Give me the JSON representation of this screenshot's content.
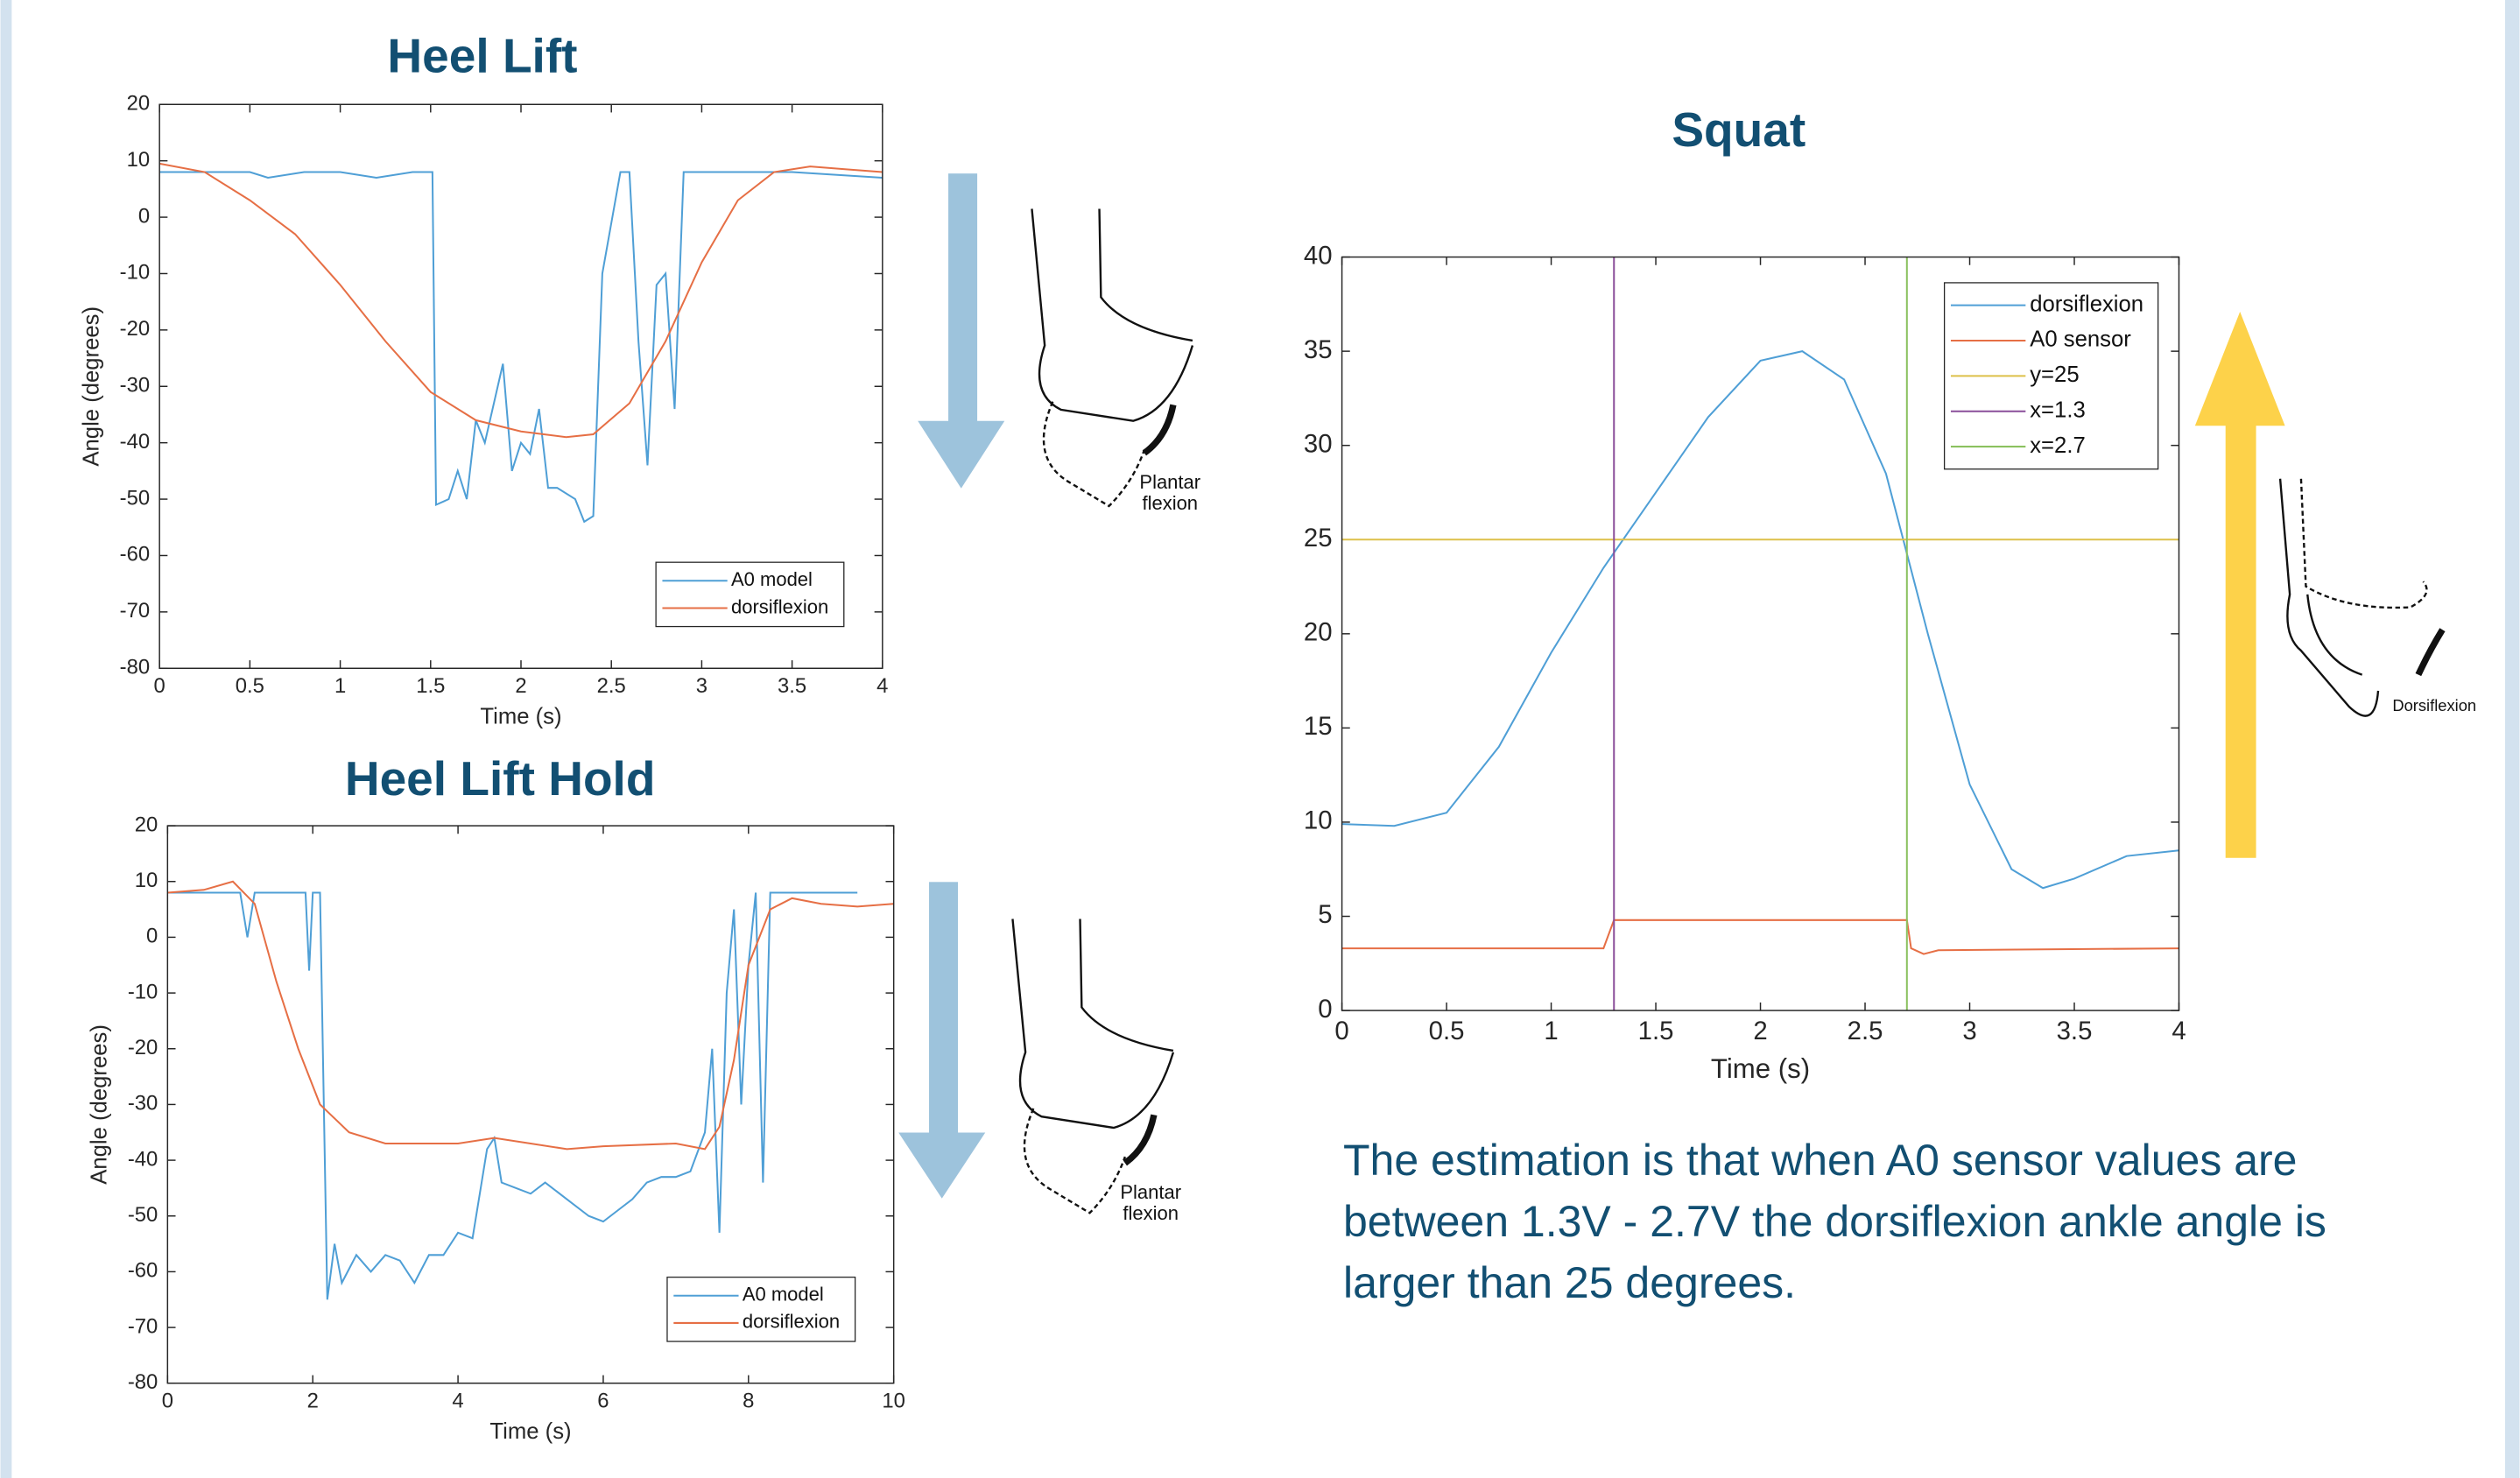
{
  "chart_data": [
    {
      "type": "line",
      "title": "Heel Lift",
      "x_label": "Time (s)",
      "y_label": "Angle (degrees)",
      "xlim": [
        0,
        4
      ],
      "xticks": [
        0,
        0.5,
        1,
        1.5,
        2,
        2.5,
        3,
        3.5,
        4
      ],
      "ylim": [
        -80,
        20
      ],
      "yticks": [
        -80,
        -70,
        -60,
        -50,
        -40,
        -30,
        -20,
        -10,
        0,
        10,
        20
      ],
      "legend": "lower right",
      "series": [
        {
          "name": "A0 model",
          "color": "#4f9fd6",
          "x": [
            0,
            0.3,
            0.5,
            0.6,
            0.8,
            1.0,
            1.2,
            1.4,
            1.51,
            1.53,
            1.6,
            1.65,
            1.7,
            1.75,
            1.8,
            1.85,
            1.9,
            1.95,
            2.0,
            2.05,
            2.1,
            2.15,
            2.2,
            2.3,
            2.35,
            2.4,
            2.45,
            2.5,
            2.55,
            2.6,
            2.65,
            2.7,
            2.75,
            2.8,
            2.85,
            2.9,
            2.95,
            3.0,
            3.5,
            4.0
          ],
          "values": [
            8,
            8,
            8,
            7,
            8,
            8,
            7,
            8,
            8,
            -51,
            -50,
            -45,
            -50,
            -36,
            -40,
            -33,
            -26,
            -45,
            -40,
            -42,
            -34,
            -48,
            -48,
            -50,
            -54,
            -53,
            -10,
            -1,
            8,
            8,
            -22,
            -44,
            -12,
            -10,
            -34,
            8,
            8,
            8,
            8,
            7
          ]
        },
        {
          "name": "dorsiflexion",
          "color": "#e66f45",
          "x": [
            0,
            0.25,
            0.5,
            0.75,
            1,
            1.25,
            1.5,
            1.75,
            2,
            2.25,
            2.4,
            2.6,
            2.8,
            3,
            3.2,
            3.4,
            3.6,
            3.8,
            4
          ],
          "values": [
            9.5,
            8,
            3,
            -3,
            -12,
            -22,
            -31,
            -36,
            -38,
            -39,
            -38.5,
            -33,
            -22,
            -8,
            3,
            8,
            9,
            8.5,
            8
          ]
        }
      ]
    },
    {
      "type": "line",
      "title": "Heel Lift Hold",
      "x_label": "Time (s)",
      "y_label": "Angle (degrees)",
      "xlim": [
        0,
        10
      ],
      "xticks": [
        0,
        2,
        4,
        6,
        8,
        10
      ],
      "ylim": [
        -80,
        20
      ],
      "yticks": [
        -80,
        -70,
        -60,
        -50,
        -40,
        -30,
        -20,
        -10,
        0,
        10,
        20
      ],
      "legend": "lower right",
      "series": [
        {
          "name": "A0 model",
          "color": "#4f9fd6",
          "x": [
            0,
            1,
            1.1,
            1.2,
            1.9,
            1.95,
            2.0,
            2.1,
            2.2,
            2.3,
            2.4,
            2.6,
            2.8,
            3.0,
            3.2,
            3.4,
            3.6,
            3.8,
            4.0,
            4.2,
            4.4,
            4.5,
            4.6,
            4.8,
            5.0,
            5.2,
            5.5,
            5.8,
            6.0,
            6.2,
            6.4,
            6.6,
            6.8,
            7.0,
            7.2,
            7.4,
            7.5,
            7.6,
            7.7,
            7.8,
            7.9,
            8.0,
            8.1,
            8.2,
            8.3,
            9.0,
            9.5
          ],
          "values": [
            8,
            8,
            0,
            8,
            8,
            -6,
            8,
            8,
            -65,
            -55,
            -62,
            -57,
            -60,
            -57,
            -58,
            -62,
            -57,
            -57,
            -53,
            -54,
            -38,
            -36,
            -44,
            -45,
            -46,
            -44,
            -47,
            -50,
            -51,
            -49,
            -47,
            -44,
            -43,
            -43,
            -42,
            -35,
            -20,
            -53,
            -10,
            5,
            -30,
            -5,
            8,
            -44,
            8,
            8,
            8
          ]
        },
        {
          "name": "dorsiflexion",
          "color": "#e66f45",
          "x": [
            0,
            0.5,
            0.9,
            1.2,
            1.5,
            1.8,
            2.1,
            2.5,
            3,
            4,
            4.5,
            5,
            5.5,
            6,
            7,
            7.4,
            7.6,
            7.8,
            8,
            8.3,
            8.6,
            9,
            9.5,
            10
          ],
          "values": [
            8,
            8.5,
            10,
            6,
            -8,
            -20,
            -30,
            -35,
            -37,
            -37,
            -36,
            -37,
            -38,
            -37.5,
            -37,
            -38,
            -34,
            -22,
            -5,
            5,
            7,
            6,
            5.5,
            6
          ]
        }
      ]
    },
    {
      "type": "line",
      "title": "Squat",
      "x_label": "Time (s)",
      "xlim": [
        0,
        4
      ],
      "xticks": [
        0,
        0.5,
        1,
        1.5,
        2,
        2.5,
        3,
        3.5,
        4
      ],
      "ylim": [
        0,
        40
      ],
      "yticks": [
        0,
        5,
        10,
        15,
        20,
        25,
        30,
        35,
        40
      ],
      "legend": "upper right",
      "series": [
        {
          "name": "dorsiflexion",
          "color": "#4f9fd6",
          "x": [
            0,
            0.25,
            0.5,
            0.75,
            1,
            1.25,
            1.5,
            1.75,
            2,
            2.2,
            2.4,
            2.6,
            2.8,
            3,
            3.2,
            3.35,
            3.5,
            3.75,
            4
          ],
          "values": [
            9.9,
            9.8,
            10.5,
            14,
            19,
            23.5,
            27.5,
            31.5,
            34.5,
            35,
            33.5,
            28.5,
            20,
            12,
            7.5,
            6.5,
            7,
            8.2,
            8.5
          ]
        },
        {
          "name": "A0 sensor",
          "color": "#e66f45",
          "x": [
            0,
            1.25,
            1.3,
            2.7,
            2.72,
            2.78,
            2.85,
            4
          ],
          "values": [
            3.3,
            3.3,
            4.8,
            4.8,
            3.3,
            3.0,
            3.2,
            3.3
          ]
        },
        {
          "name": "y=25",
          "color": "#ddc14a",
          "x": [
            0,
            4
          ],
          "values": [
            25,
            25
          ]
        },
        {
          "name": "x=1.3",
          "color": "#8a4e9a",
          "x": [
            1.3,
            1.3
          ],
          "values": [
            0,
            40
          ]
        },
        {
          "name": "x=2.7",
          "color": "#8bc160",
          "x": [
            2.7,
            2.7
          ],
          "values": [
            0,
            40
          ]
        }
      ]
    }
  ],
  "illustrations": [
    {
      "label_lines": [
        "Plantar",
        "flexion"
      ]
    },
    {
      "label_lines": [
        "Plantar",
        "flexion"
      ]
    },
    {
      "label_lines": [
        "Dorsiflexion"
      ]
    }
  ],
  "note": "The estimation is that when A0 sensor values are between 1.3V - 2.7V the dorsiflexion ankle angle is larger than 25 degrees."
}
